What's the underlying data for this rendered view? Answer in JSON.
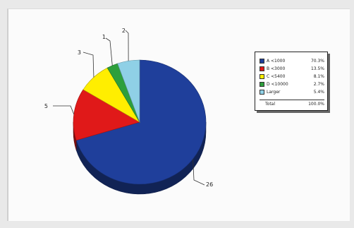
{
  "chart_data": {
    "type": "pie",
    "title": "",
    "slices": [
      {
        "label": "A <1000",
        "value": 26,
        "percent": "70.3%",
        "color": "#1f3f9b"
      },
      {
        "label": "B <3000",
        "value": 5,
        "percent": "13.5%",
        "color": "#e01919"
      },
      {
        "label": "C <5400",
        "value": 3,
        "percent": "8.1%",
        "color": "#ffee00"
      },
      {
        "label": "D <10000",
        "value": 1,
        "percent": "2.7%",
        "color": "#2d9f3c"
      },
      {
        "label": "Larger",
        "value": 2,
        "percent": "5.4%",
        "color": "#8fd0e6"
      }
    ],
    "callout_order": [
      4,
      3,
      2,
      1,
      0
    ],
    "total": {
      "label": "Total",
      "percent": "100.0%"
    },
    "legend_placement": "right"
  }
}
